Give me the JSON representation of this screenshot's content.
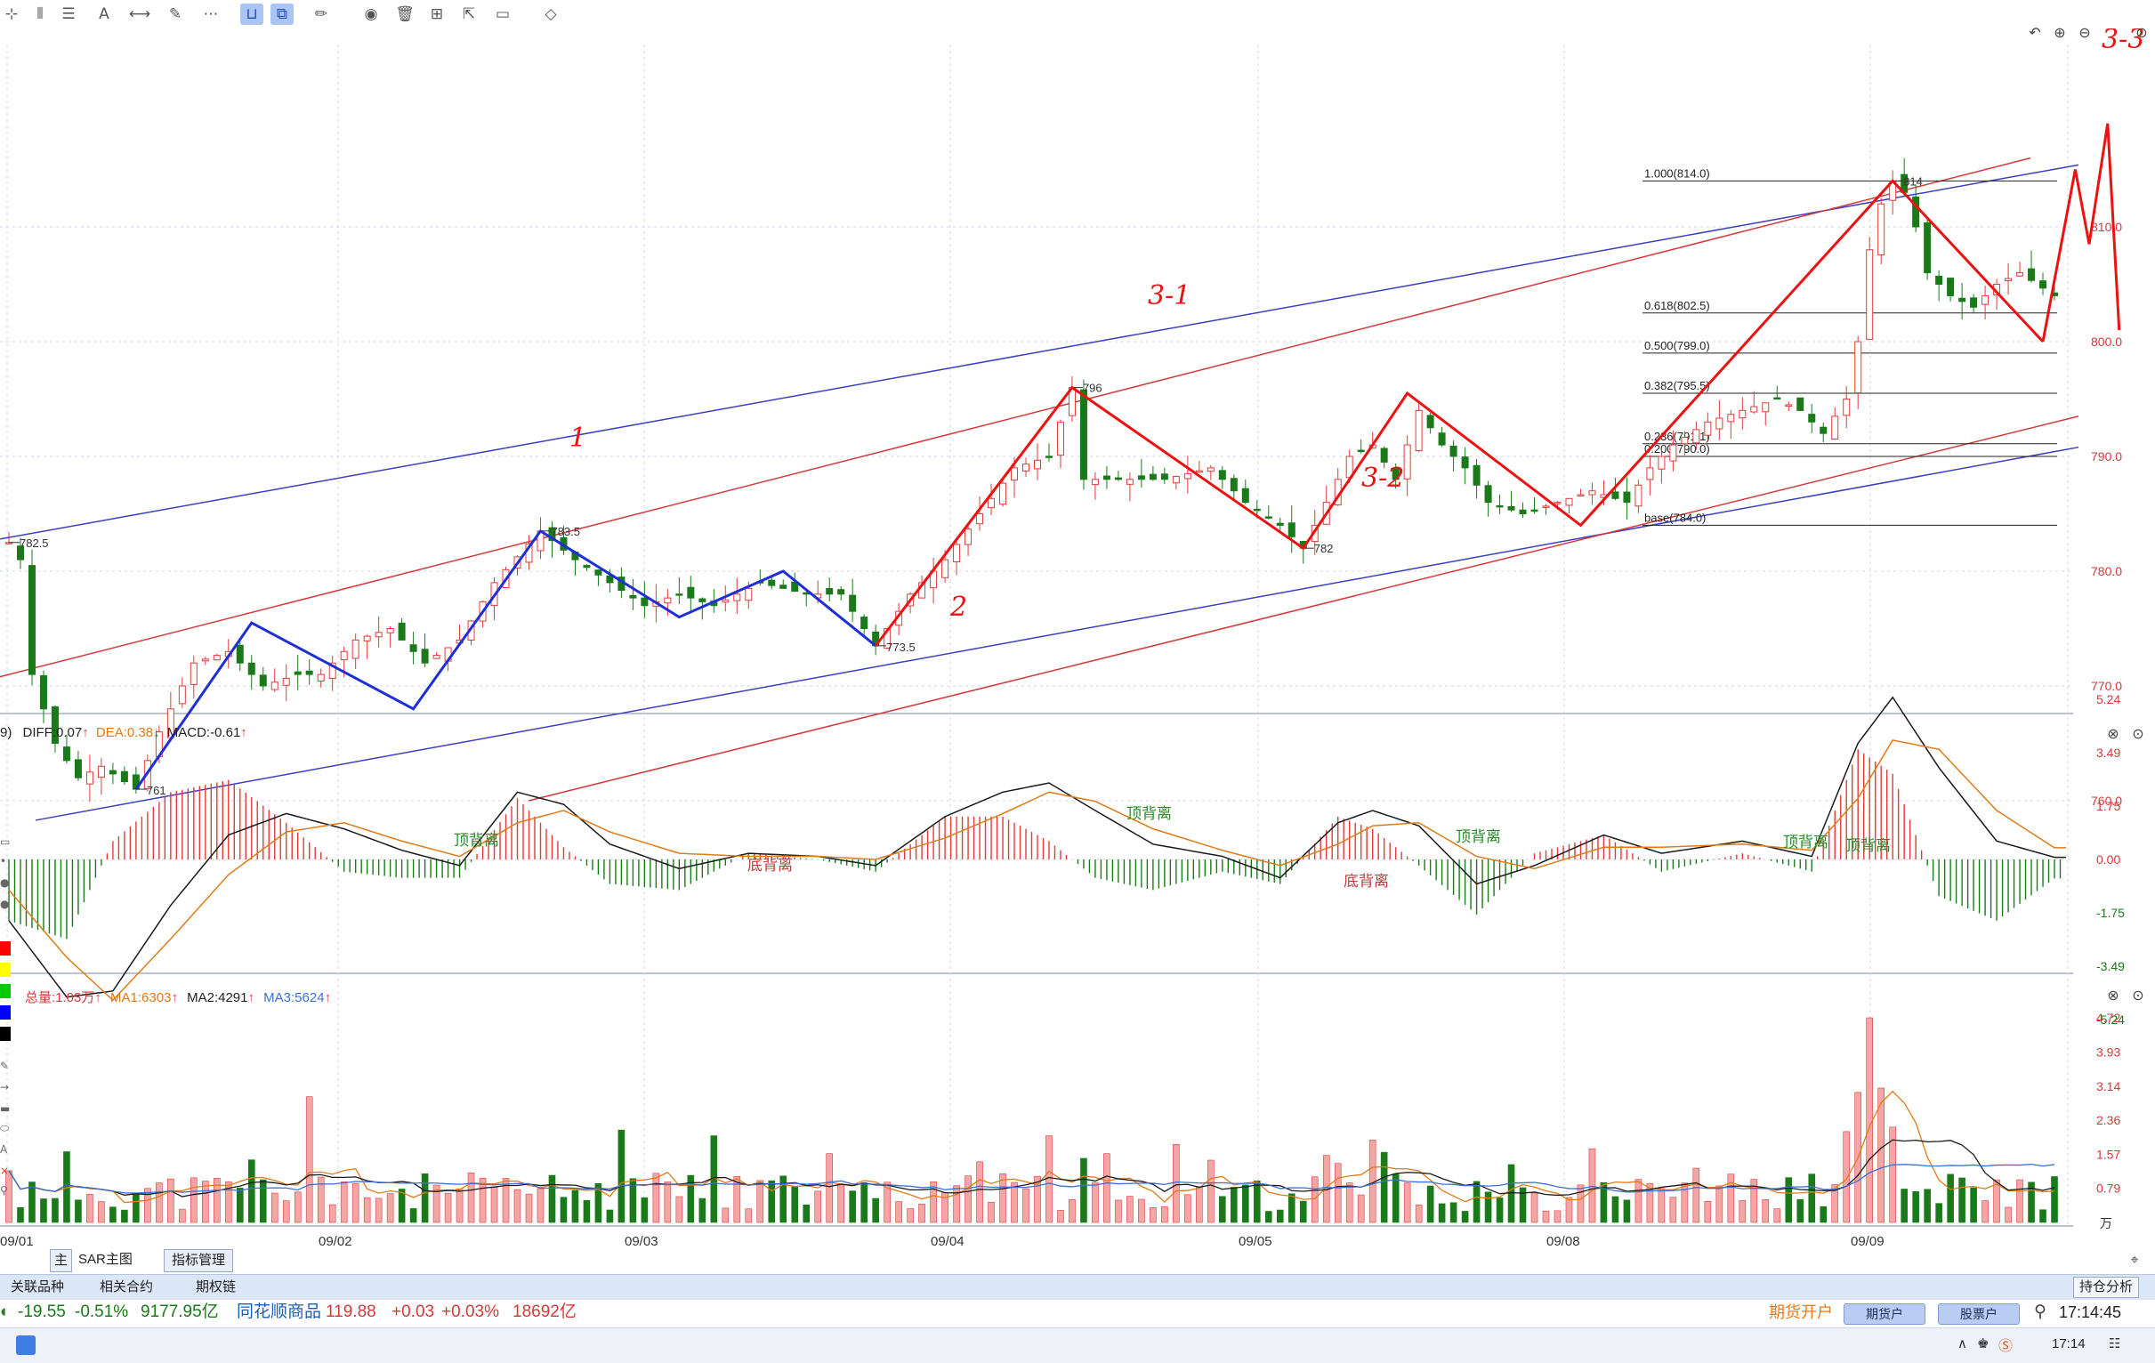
{
  "toolbar": {
    "left_icons": [
      "cursor-icon",
      "vertical-lines-icon",
      "horizontal-lines-icon",
      "text-icon",
      "segment-icon",
      "brush-icon",
      "more-icon",
      "magnet-icon",
      "copy-drawing-icon",
      "pencil-icon",
      "eye-icon",
      "delete-icon",
      "layout-icon",
      "export-icon",
      "comment-icon",
      "eraser-icon"
    ]
  },
  "chart_controls": {
    "undo": "↶",
    "zoom_in": "⊕",
    "zoom_out": "⊖",
    "settings": "⊙"
  },
  "chart_data": [
    {
      "type": "candlestick",
      "x_dates": [
        "09/01",
        "09/02",
        "09/03",
        "09/04",
        "09/05",
        "09/08",
        "09/09"
      ],
      "y_ticks": [
        "810.0",
        "800.0",
        "790.0",
        "780.0",
        "770.0",
        "760.0"
      ],
      "ylim": [
        759,
        822
      ],
      "price_close_path": [
        [
          0,
          782.5
        ],
        [
          1,
          781
        ],
        [
          2,
          771
        ],
        [
          4,
          765
        ],
        [
          6,
          762
        ],
        [
          8,
          763
        ],
        [
          11,
          761
        ],
        [
          13,
          766
        ],
        [
          16,
          772
        ],
        [
          19,
          773
        ],
        [
          22,
          770
        ],
        [
          25,
          771
        ],
        [
          27,
          771
        ],
        [
          30,
          774
        ],
        [
          33,
          775
        ],
        [
          36,
          772
        ],
        [
          39,
          774
        ],
        [
          42,
          779
        ],
        [
          46,
          783.5
        ],
        [
          49,
          781
        ],
        [
          52,
          779
        ],
        [
          55,
          777
        ],
        [
          58,
          778
        ],
        [
          61,
          777
        ],
        [
          65,
          779
        ],
        [
          69,
          778
        ],
        [
          72,
          778
        ],
        [
          75,
          773.5
        ],
        [
          78,
          778
        ],
        [
          81,
          781
        ],
        [
          84,
          785
        ],
        [
          87,
          789
        ],
        [
          90,
          790
        ],
        [
          92,
          796
        ],
        [
          93,
          788
        ],
        [
          96,
          788
        ],
        [
          100,
          788
        ],
        [
          104,
          789
        ],
        [
          107,
          786
        ],
        [
          110,
          784
        ],
        [
          112,
          782
        ],
        [
          114,
          786
        ],
        [
          116,
          790
        ],
        [
          118,
          791
        ],
        [
          120,
          788
        ],
        [
          122,
          794
        ],
        [
          124,
          791
        ],
        [
          126,
          789
        ],
        [
          128,
          786
        ],
        [
          131,
          785
        ],
        [
          134,
          786
        ],
        [
          137,
          787
        ],
        [
          140,
          786
        ],
        [
          142,
          789
        ],
        [
          144,
          791
        ],
        [
          147,
          793
        ],
        [
          150,
          794
        ],
        [
          153,
          795
        ],
        [
          155,
          794
        ],
        [
          157,
          792
        ],
        [
          159,
          795
        ],
        [
          160,
          800
        ],
        [
          161,
          808
        ],
        [
          162,
          812
        ],
        [
          163,
          814
        ],
        [
          164,
          813
        ],
        [
          165,
          810
        ],
        [
          166,
          806
        ],
        [
          168,
          804
        ],
        [
          170,
          803
        ],
        [
          172,
          805
        ],
        [
          174,
          806
        ],
        [
          177,
          804
        ]
      ],
      "labels": [
        "782.5",
        "783.5",
        "761",
        "773.5",
        "796",
        "782",
        "814"
      ],
      "fibonacci": {
        "levels": [
          {
            "label": "1.000(814.0)",
            "value": 814.0
          },
          {
            "label": "0.618(802.5)",
            "value": 802.5
          },
          {
            "label": "0.500(799.0)",
            "value": 799.0
          },
          {
            "label": "0.382(795.5)",
            "value": 795.5
          },
          {
            "label": "0.236(791.1)",
            "value": 791.1
          },
          {
            "label": "0.200(790.0)",
            "value": 790.0
          },
          {
            "label": "base(784.0)",
            "value": 784.0
          }
        ]
      },
      "handwritten_annotations": [
        "1",
        "2",
        "3-1",
        "3-2",
        "3-3"
      ]
    },
    {
      "type": "macd",
      "legend": {
        "prefix": "9)",
        "diff": "DIFF:0.07",
        "dea": "DEA:0.38",
        "macd": "MACD:-0.61"
      },
      "y_ticks": [
        "5.24",
        "3.49",
        "1.75",
        "0.00",
        "-1.75",
        "-3.49",
        "-5.24"
      ],
      "ylim": [
        -5.24,
        5.24
      ],
      "annotations": [
        "顶背离",
        "底背离",
        "顶背离",
        "底背离",
        "顶背离",
        "顶背离",
        "顶背离"
      ],
      "diff_path": [
        [
          0,
          -2
        ],
        [
          5,
          -4.5
        ],
        [
          9,
          -4.3
        ],
        [
          14,
          -1.5
        ],
        [
          19,
          0.8
        ],
        [
          24,
          1.5
        ],
        [
          29,
          1.0
        ],
        [
          34,
          0.3
        ],
        [
          39,
          -0.2
        ],
        [
          44,
          2.2
        ],
        [
          48,
          1.8
        ],
        [
          52,
          0.5
        ],
        [
          58,
          -0.3
        ],
        [
          64,
          0.2
        ],
        [
          70,
          0.1
        ],
        [
          75,
          -0.2
        ],
        [
          81,
          1.4
        ],
        [
          86,
          2.2
        ],
        [
          90,
          2.5
        ],
        [
          94,
          1.6
        ],
        [
          99,
          0.5
        ],
        [
          105,
          0.1
        ],
        [
          110,
          -0.6
        ],
        [
          115,
          1.2
        ],
        [
          118,
          1.6
        ],
        [
          122,
          1.1
        ],
        [
          127,
          -0.8
        ],
        [
          132,
          -0.2
        ],
        [
          138,
          0.8
        ],
        [
          143,
          0.2
        ],
        [
          150,
          0.6
        ],
        [
          156,
          0.1
        ],
        [
          160,
          3.8
        ],
        [
          163,
          5.3
        ],
        [
          167,
          3.0
        ],
        [
          172,
          0.6
        ],
        [
          177,
          0.07
        ]
      ],
      "dea_path": [
        [
          0,
          -1
        ],
        [
          5,
          -3.2
        ],
        [
          9,
          -4.6
        ],
        [
          14,
          -2.6
        ],
        [
          19,
          -0.5
        ],
        [
          24,
          0.9
        ],
        [
          29,
          1.2
        ],
        [
          34,
          0.6
        ],
        [
          39,
          0.1
        ],
        [
          44,
          1.2
        ],
        [
          48,
          1.6
        ],
        [
          52,
          0.9
        ],
        [
          58,
          0.2
        ],
        [
          64,
          0.1
        ],
        [
          70,
          0.1
        ],
        [
          75,
          0.0
        ],
        [
          81,
          0.7
        ],
        [
          86,
          1.5
        ],
        [
          90,
          2.2
        ],
        [
          94,
          1.9
        ],
        [
          99,
          1.0
        ],
        [
          105,
          0.3
        ],
        [
          110,
          -0.2
        ],
        [
          115,
          0.5
        ],
        [
          118,
          1.1
        ],
        [
          122,
          1.2
        ],
        [
          127,
          0.1
        ],
        [
          132,
          -0.3
        ],
        [
          138,
          0.4
        ],
        [
          143,
          0.4
        ],
        [
          150,
          0.5
        ],
        [
          156,
          0.3
        ],
        [
          160,
          2.0
        ],
        [
          163,
          3.9
        ],
        [
          167,
          3.6
        ],
        [
          172,
          1.6
        ],
        [
          177,
          0.38
        ]
      ]
    },
    {
      "type": "volume",
      "legend": {
        "total": "总量:1.03万",
        "ma1": "MA1:6303",
        "ma2": "MA2:4291",
        "ma3": "MA3:5624"
      },
      "y_ticks": [
        "4.72",
        "3.93",
        "3.14",
        "2.36",
        "1.57",
        "0.79"
      ],
      "y_unit": "万",
      "ylim": [
        0,
        4.72
      ]
    }
  ],
  "colors": {
    "up": "#e23b3b",
    "down": "#1a7a1a",
    "blue_wave": "#1f2fd6",
    "red_wave": "#ee1111",
    "channel_blue": "#3a3fbf",
    "channel_red": "#d53a3a",
    "ma1": "#e07b16",
    "ma2": "#1a1a1a",
    "ma3": "#3d6fd6"
  },
  "left_panel_colors": [
    "#ff0000",
    "#ffff00",
    "#00cc00",
    "#0000ff",
    "#000000"
  ],
  "bottom_tabs": {
    "main_label": "主",
    "sar_label": "SAR主图",
    "manage_label": "指标管理"
  },
  "info_tabs": {
    "related_label": "关联品种",
    "contract_label": "相关合约",
    "options_label": "期权链",
    "holding_label": "持仓分析"
  },
  "ticker": {
    "idx_change": "-19.55",
    "idx_pct": "-0.51%",
    "idx_amount": "9177.95亿",
    "name": "同花顺商品",
    "price": "119.88",
    "change": "+0.03",
    "pct": "+0.03%",
    "amount": "18692亿",
    "futures_open_label": "期货开户",
    "futures_account_label": "期货户",
    "stock_account_label": "股票户",
    "time": "17:14:45"
  },
  "taskbar": {
    "time": "17:14"
  }
}
